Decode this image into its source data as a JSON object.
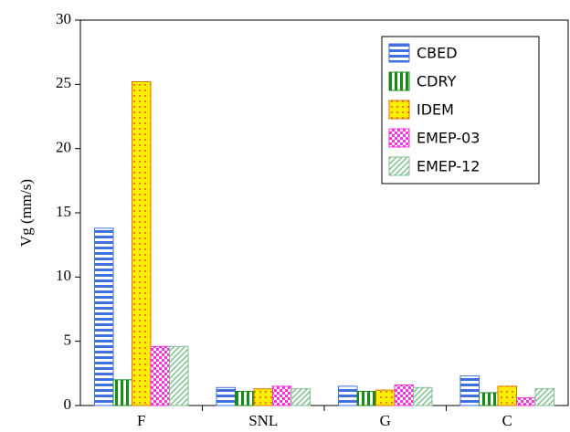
{
  "chart_data": {
    "type": "bar",
    "ylabel": "Vg (mm/s)",
    "categories": [
      "F",
      "SNL",
      "G",
      "C"
    ],
    "series": [
      {
        "name": "CBED",
        "color": "#3f6fe0",
        "hatch": "horizontal",
        "values": [
          13.8,
          1.4,
          1.5,
          2.3
        ]
      },
      {
        "name": "CDRY",
        "color": "#1a8a1a",
        "hatch": "vertical",
        "values": [
          2.0,
          1.1,
          1.1,
          1.0
        ]
      },
      {
        "name": "IDEM",
        "color": "#ffee00",
        "hatch": "dots",
        "values": [
          25.2,
          1.3,
          1.2,
          1.5
        ]
      },
      {
        "name": "EMEP-03",
        "color": "#ff33dd",
        "hatch": "checker",
        "values": [
          4.6,
          1.5,
          1.6,
          0.6
        ]
      },
      {
        "name": "EMEP-12",
        "color": "#7fbf8f",
        "hatch": "diagonal",
        "values": [
          4.6,
          1.3,
          1.4,
          1.3
        ]
      }
    ],
    "ylim": [
      0,
      30
    ],
    "yticks": [
      0,
      5,
      10,
      15,
      20,
      25,
      30
    ],
    "legend": "upper right"
  }
}
